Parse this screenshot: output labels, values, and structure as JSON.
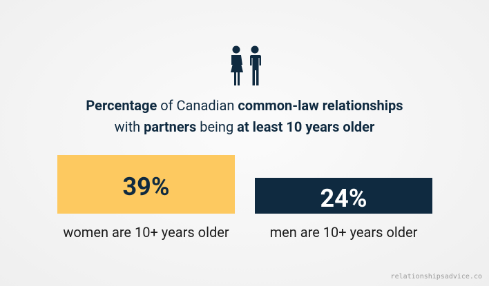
{
  "chart_data": {
    "type": "bar",
    "title_lines": [
      [
        {
          "text": "Percentage",
          "bold": true
        },
        {
          "text": " of Canadian ",
          "bold": false
        },
        {
          "text": "common-law relationships",
          "bold": true
        }
      ],
      [
        {
          "text": "with ",
          "bold": false
        },
        {
          "text": "partners",
          "bold": true
        },
        {
          "text": " being ",
          "bold": false
        },
        {
          "text": "at least 10 years older",
          "bold": true
        }
      ]
    ],
    "categories": [
      "women are 10+ years older",
      "men are 10+ years older"
    ],
    "values": [
      39,
      24
    ],
    "value_labels": [
      "39%",
      "24%"
    ],
    "colors": [
      "#fdc960",
      "#0f2a40"
    ],
    "value_label_colors": [
      "#0f2a40",
      "#ffffff"
    ]
  },
  "watermark": "relationshipsadvice.co"
}
